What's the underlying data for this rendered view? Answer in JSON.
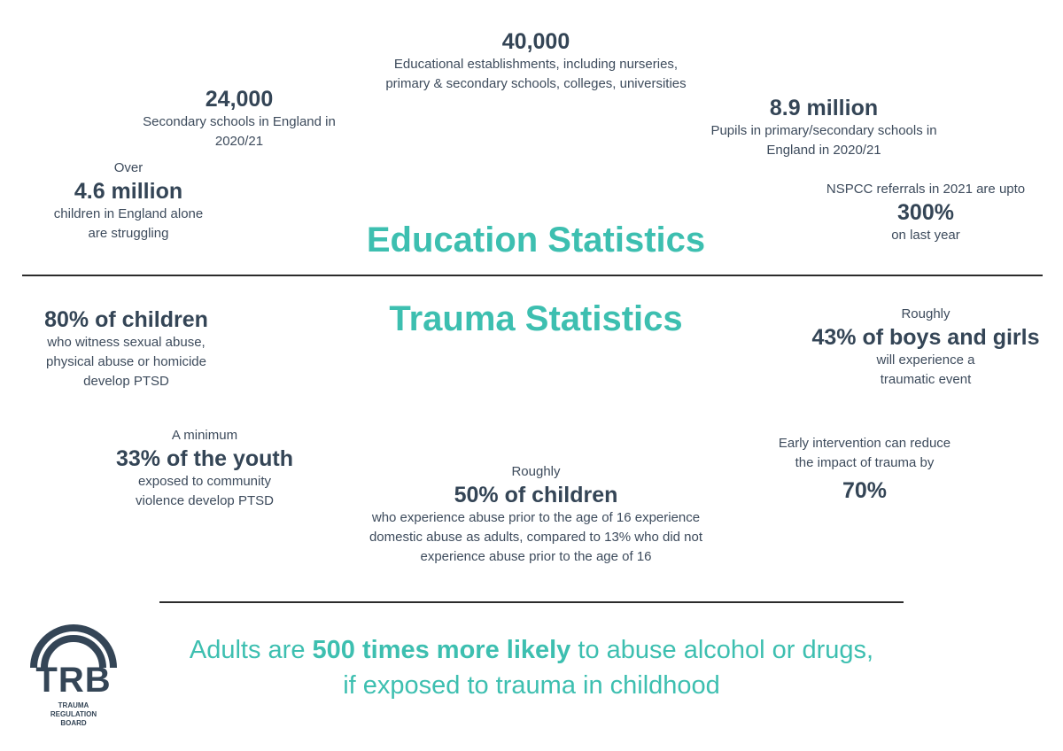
{
  "education": {
    "heading": "Education Statistics",
    "establishments": {
      "value": "40,000",
      "line1": "Educational establishments, including nurseries,",
      "line2": "primary & secondary schools, colleges, universities"
    },
    "secondary": {
      "value": "24,000",
      "line1": "Secondary schools in England in",
      "line2": "2020/21"
    },
    "pupils": {
      "value": "8.9 million",
      "line1": "Pupils in primary/secondary schools in",
      "line2": "England in 2020/21"
    },
    "children": {
      "prefix": "Over",
      "value": "4.6 million",
      "line1": "children in England alone",
      "line2": "are struggling"
    },
    "nspcc": {
      "line1": "NSPCC referrals in 2021 are upto",
      "value": "300%",
      "line2": "on last year"
    }
  },
  "trauma": {
    "heading": "Trauma Statistics",
    "ptsd": {
      "value": "80% of children",
      "line1": "who witness sexual abuse,",
      "line2": "physical abuse or homicide",
      "line3": "develop PTSD"
    },
    "boys_girls": {
      "prefix": "Roughly",
      "value": "43% of boys and girls",
      "line1": "will experience a",
      "line2": "traumatic event"
    },
    "youth": {
      "prefix": "A minimum",
      "value": "33% of the youth",
      "line1": "exposed to community",
      "line2": "violence develop PTSD"
    },
    "abuse": {
      "prefix": "Roughly",
      "value": "50% of children",
      "line1": "who experience abuse prior to the age of 16 experience",
      "line2": "domestic abuse as adults, compared to 13% who did not",
      "line3": "experience abuse prior to the age of 16"
    },
    "intervention": {
      "line1": "Early intervention can reduce",
      "line2": "the impact of trauma by",
      "value": "70%"
    }
  },
  "footer": {
    "part1": "Adults are ",
    "bold": "500 times more likely",
    "part2": " to abuse alcohol or drugs,",
    "line2": "if  exposed to trauma in childhood"
  },
  "logo": {
    "letters": "TRB",
    "line1": "TRAUMA",
    "line2": "REGULATION",
    "line3": "BOARD"
  },
  "colors": {
    "accent": "#3dbfb0",
    "text": "#344556"
  }
}
